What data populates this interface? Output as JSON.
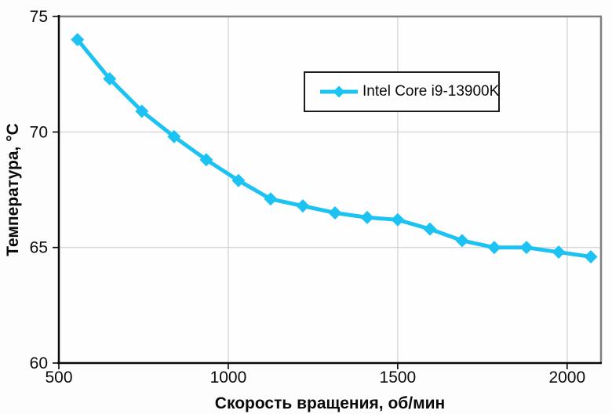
{
  "chart_data": {
    "type": "line",
    "title": "",
    "xlabel": "Скорость вращения, об/мин",
    "ylabel": "Температура, °C",
    "xlim": [
      500,
      2100
    ],
    "ylim": [
      60,
      75
    ],
    "xticks": [
      500,
      1000,
      1500,
      2000
    ],
    "xtick_labels": [
      "500",
      "1000",
      "1500",
      "2000"
    ],
    "yticks": [
      60,
      65,
      70,
      75
    ],
    "ytick_labels": [
      "60",
      "65",
      "70",
      "75"
    ],
    "grid": true,
    "legend_position": "top-center-inside",
    "series": [
      {
        "name": "Intel Core i9-13900K",
        "marker": "diamond",
        "x": [
          555,
          650,
          745,
          840,
          935,
          1030,
          1125,
          1220,
          1315,
          1410,
          1500,
          1595,
          1690,
          1785,
          1880,
          1975,
          2070
        ],
        "y": [
          74.0,
          72.3,
          70.9,
          69.8,
          68.8,
          67.9,
          67.1,
          66.8,
          66.5,
          66.3,
          66.2,
          65.8,
          65.3,
          65.0,
          65.0,
          64.8,
          64.6
        ]
      }
    ]
  },
  "colors": {
    "series": "#1cc3f2",
    "grid": "#d9d9d9",
    "outer_border": "#7f7f7f",
    "axis": "#0a0a0a",
    "tick_text": "#0a0a0a",
    "plot_background": "#fefefe",
    "page_background": "#fdfdfd"
  }
}
